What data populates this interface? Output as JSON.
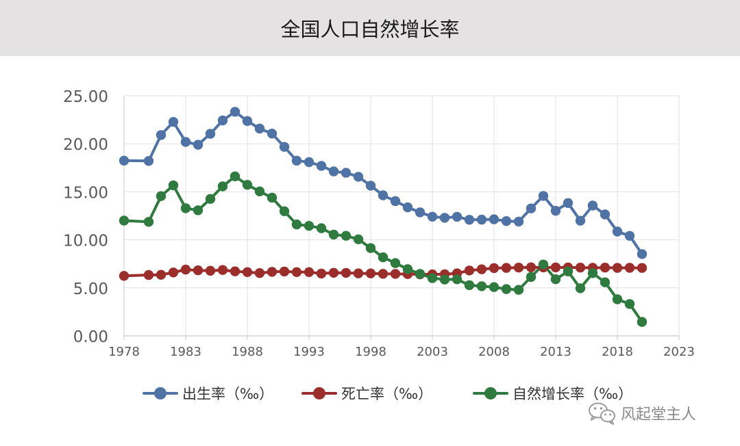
{
  "header": {
    "title": "全国人口自然增长率"
  },
  "chart_data": {
    "type": "line",
    "title": "全国人口自然增长率",
    "xlabel": "",
    "ylabel": "",
    "xlim": [
      1978,
      2023
    ],
    "ylim": [
      0,
      25
    ],
    "x_ticks": [
      "1978",
      "1983",
      "1988",
      "1993",
      "1998",
      "2003",
      "2008",
      "2013",
      "2018",
      "2023"
    ],
    "y_ticks": [
      "0.00",
      "5.00",
      "10.00",
      "15.00",
      "20.00",
      "25.00"
    ],
    "grid": true,
    "legend_position": "bottom",
    "series": [
      {
        "name": "出生率（‰）",
        "color": "#4e73a4",
        "points": [
          [
            1978,
            18.25
          ],
          [
            1980,
            18.21
          ],
          [
            1981,
            20.91
          ],
          [
            1982,
            22.28
          ],
          [
            1983,
            20.19
          ],
          [
            1984,
            19.9
          ],
          [
            1985,
            21.04
          ],
          [
            1986,
            22.43
          ],
          [
            1987,
            23.33
          ],
          [
            1988,
            22.37
          ],
          [
            1989,
            21.58
          ],
          [
            1990,
            21.06
          ],
          [
            1991,
            19.68
          ],
          [
            1992,
            18.24
          ],
          [
            1993,
            18.09
          ],
          [
            1994,
            17.7
          ],
          [
            1995,
            17.12
          ],
          [
            1996,
            16.98
          ],
          [
            1997,
            16.57
          ],
          [
            1998,
            15.64
          ],
          [
            1999,
            14.64
          ],
          [
            2000,
            14.03
          ],
          [
            2001,
            13.38
          ],
          [
            2002,
            12.86
          ],
          [
            2003,
            12.41
          ],
          [
            2004,
            12.29
          ],
          [
            2005,
            12.4
          ],
          [
            2006,
            12.09
          ],
          [
            2007,
            12.1
          ],
          [
            2008,
            12.14
          ],
          [
            2009,
            11.95
          ],
          [
            2010,
            11.9
          ],
          [
            2011,
            13.27
          ],
          [
            2012,
            14.57
          ],
          [
            2013,
            13.03
          ],
          [
            2014,
            13.83
          ],
          [
            2015,
            11.99
          ],
          [
            2016,
            13.57
          ],
          [
            2017,
            12.64
          ],
          [
            2018,
            10.86
          ],
          [
            2019,
            10.41
          ],
          [
            2020,
            8.52
          ]
        ]
      },
      {
        "name": "死亡率（‰）",
        "color": "#9b2d2a",
        "points": [
          [
            1978,
            6.25
          ],
          [
            1980,
            6.34
          ],
          [
            1981,
            6.36
          ],
          [
            1982,
            6.6
          ],
          [
            1983,
            6.9
          ],
          [
            1984,
            6.82
          ],
          [
            1985,
            6.78
          ],
          [
            1986,
            6.86
          ],
          [
            1987,
            6.72
          ],
          [
            1988,
            6.64
          ],
          [
            1989,
            6.54
          ],
          [
            1990,
            6.67
          ],
          [
            1991,
            6.7
          ],
          [
            1992,
            6.64
          ],
          [
            1993,
            6.64
          ],
          [
            1994,
            6.49
          ],
          [
            1995,
            6.57
          ],
          [
            1996,
            6.56
          ],
          [
            1997,
            6.51
          ],
          [
            1998,
            6.5
          ],
          [
            1999,
            6.46
          ],
          [
            2000,
            6.45
          ],
          [
            2001,
            6.43
          ],
          [
            2002,
            6.41
          ],
          [
            2003,
            6.4
          ],
          [
            2004,
            6.42
          ],
          [
            2005,
            6.51
          ],
          [
            2006,
            6.81
          ],
          [
            2007,
            6.93
          ],
          [
            2008,
            7.06
          ],
          [
            2009,
            7.08
          ],
          [
            2010,
            7.11
          ],
          [
            2011,
            7.14
          ],
          [
            2012,
            7.13
          ],
          [
            2013,
            7.13
          ],
          [
            2014,
            7.12
          ],
          [
            2015,
            7.11
          ],
          [
            2016,
            7.09
          ],
          [
            2017,
            7.11
          ],
          [
            2018,
            7.08
          ],
          [
            2019,
            7.09
          ],
          [
            2020,
            7.07
          ]
        ]
      },
      {
        "name": "自然增长率（‰）",
        "color": "#2f7a3e",
        "points": [
          [
            1978,
            12.0
          ],
          [
            1980,
            11.87
          ],
          [
            1981,
            14.55
          ],
          [
            1982,
            15.68
          ],
          [
            1983,
            13.29
          ],
          [
            1984,
            13.08
          ],
          [
            1985,
            14.26
          ],
          [
            1986,
            15.57
          ],
          [
            1987,
            16.61
          ],
          [
            1988,
            15.73
          ],
          [
            1989,
            15.04
          ],
          [
            1990,
            14.39
          ],
          [
            1991,
            12.98
          ],
          [
            1992,
            11.6
          ],
          [
            1993,
            11.45
          ],
          [
            1994,
            11.21
          ],
          [
            1995,
            10.55
          ],
          [
            1996,
            10.42
          ],
          [
            1997,
            10.06
          ],
          [
            1998,
            9.14
          ],
          [
            1999,
            8.18
          ],
          [
            2000,
            7.58
          ],
          [
            2001,
            6.95
          ],
          [
            2002,
            6.45
          ],
          [
            2003,
            6.01
          ],
          [
            2004,
            5.87
          ],
          [
            2005,
            5.89
          ],
          [
            2006,
            5.28
          ],
          [
            2007,
            5.17
          ],
          [
            2008,
            5.08
          ],
          [
            2009,
            4.87
          ],
          [
            2010,
            4.79
          ],
          [
            2011,
            6.13
          ],
          [
            2012,
            7.43
          ],
          [
            2013,
            5.9
          ],
          [
            2014,
            6.71
          ],
          [
            2015,
            4.96
          ],
          [
            2016,
            6.53
          ],
          [
            2017,
            5.58
          ],
          [
            2018,
            3.81
          ],
          [
            2019,
            3.32
          ],
          [
            2020,
            1.45
          ]
        ]
      }
    ]
  },
  "watermark": {
    "text": "风起堂主人",
    "icon": "wechat-icon"
  }
}
